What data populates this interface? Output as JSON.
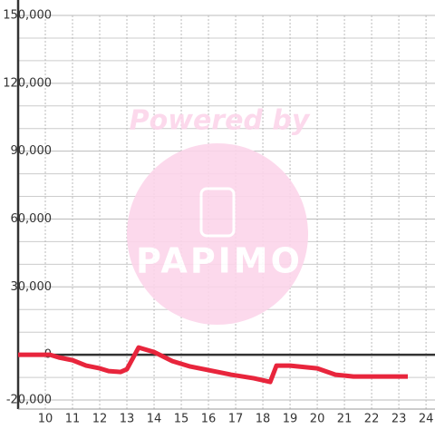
{
  "chart_data": {
    "type": "line",
    "watermark": {
      "text": "Powered by",
      "logo": "PAPIMO"
    },
    "x": [
      9,
      10.17,
      10.5,
      11,
      11.5,
      12,
      12.33,
      12.77,
      13,
      13.43,
      14,
      14.67,
      15.33,
      16,
      16.83,
      17.67,
      18.27,
      18.5,
      19,
      20,
      20.67,
      21.33,
      23.33
    ],
    "series": [
      {
        "color": "#e8253c",
        "values": [
          0,
          0,
          -1200,
          -2400,
          -4800,
          -6000,
          -7200,
          -7600,
          -6400,
          3200,
          1200,
          -2800,
          -5200,
          -6800,
          -8800,
          -10400,
          -12000,
          -4800,
          -4800,
          -6000,
          -8800,
          -9600,
          -9600
        ]
      }
    ],
    "xlim": [
      9,
      24.33
    ],
    "xticks": [
      10,
      11,
      12,
      13,
      14,
      15,
      16,
      17,
      18,
      19,
      20,
      21,
      22,
      23,
      24
    ],
    "ylim": [
      -24000,
      150000
    ],
    "yticks": [
      {
        "value": 150000,
        "label": "150,000"
      },
      {
        "value": 120000,
        "label": "120,000"
      },
      {
        "value": 90000,
        "label": "90,000"
      },
      {
        "value": 60000,
        "label": "60,000"
      },
      {
        "value": 30000,
        "label": "30,000"
      },
      0,
      {
        "value": -20000,
        "label": "-20,000"
      }
    ],
    "minor_yticks": [
      140000,
      130000,
      110000,
      100000,
      80000,
      70000,
      50000,
      40000,
      20000,
      10000,
      -10000
    ],
    "grid": true
  }
}
